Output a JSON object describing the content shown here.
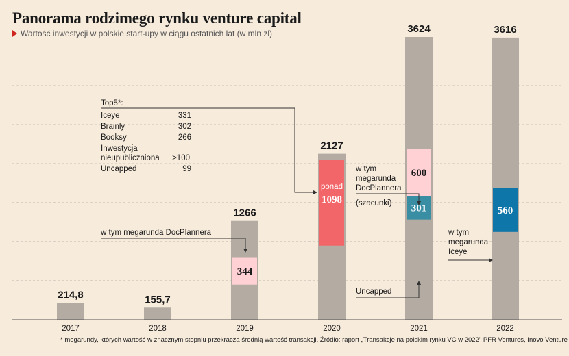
{
  "title": "Panorama rodzimego rynku venture capital",
  "subtitle": "Wartość inwestycji w polskie start-upy w ciągu ostatnich lat (w mln zł)",
  "footnote": "* megarundy, których wartość w znacznym stopniu przekracza średnią wartość transakcji. Źródło: raport „Transakcje na polskim rynku VC w 2022\" PFR Ventures, Inovo Venture Partners",
  "colors": {
    "bar": "#b4aca3",
    "red": "#f2666a",
    "pink": "#ffd0d4",
    "teal": "#3a8ea3",
    "blue": "#0e76a8",
    "grid": "#bdb4aa"
  },
  "chart_data": {
    "type": "bar",
    "categories": [
      "2017",
      "2018",
      "2019",
      "2020",
      "2021",
      "2022"
    ],
    "values": [
      214.8,
      155.7,
      1266,
      2127,
      3624,
      3616
    ],
    "value_labels": [
      "214,8",
      "155,7",
      "1266",
      "2127",
      "3624",
      "3616"
    ],
    "ylim": [
      0,
      3700
    ],
    "grid": true,
    "segments": [
      {
        "category": "2019",
        "value": 344,
        "label": "344",
        "color": "pink",
        "start": 450
      },
      {
        "category": "2020",
        "value": 1098,
        "label": "1098",
        "prefix": "ponad",
        "color": "red",
        "start": 950
      },
      {
        "category": "2021",
        "value": 600,
        "label": "600",
        "color": "pink",
        "start": 1585
      },
      {
        "category": "2021",
        "value": 301,
        "label": "301",
        "color": "teal",
        "start": 1284
      },
      {
        "category": "2022",
        "value": 560,
        "label": "560",
        "color": "blue",
        "start": 1125
      }
    ]
  },
  "top5": {
    "header": "Top5*:",
    "rows": [
      {
        "name": "Iceye",
        "value": "331"
      },
      {
        "name": "Brainly",
        "value": "302"
      },
      {
        "name": "Booksy",
        "value": "266"
      },
      {
        "name": "Inwestycja nieupubliczniona",
        "value": ">100"
      },
      {
        "name": "Uncapped",
        "value": "99"
      }
    ]
  },
  "notes": {
    "docplanner_2019": "w tym megarunda DocPlannera",
    "docplanner_2021": "w tym megarunda DocPlannera",
    "szacunki": "(szacunki)",
    "uncapped": "Uncapped",
    "iceye": "w tym megarunda Iceye"
  }
}
